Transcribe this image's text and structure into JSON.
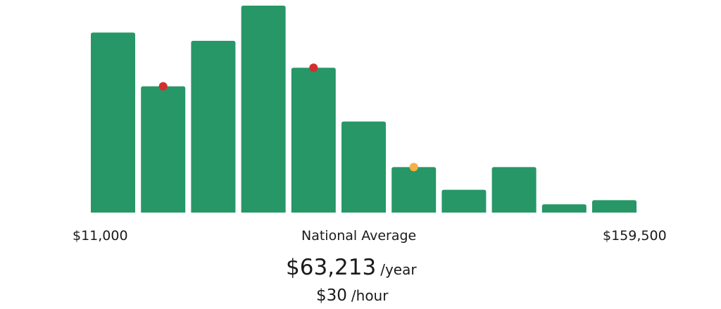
{
  "chart_data": {
    "type": "bar",
    "title": "",
    "xlabel": "",
    "ylabel": "",
    "relative_values_percent_of_max": [
      87,
      61,
      83,
      100,
      70,
      44,
      22,
      11,
      22,
      4,
      6
    ],
    "x_range_labels": {
      "min": "$11,000",
      "center": "National Average",
      "max": "$159,500"
    },
    "markers": [
      {
        "bar_index": 1,
        "color": "#d32f2f"
      },
      {
        "bar_index": 4,
        "color": "#d32f2f"
      },
      {
        "bar_index": 6,
        "color": "#f5b041"
      }
    ],
    "bar_color": "#279767",
    "grid": false,
    "legend": "none"
  },
  "summary": {
    "yearly_value": "$63,213",
    "yearly_unit": "/year",
    "hourly_value": "$30",
    "hourly_unit": "/hour"
  }
}
